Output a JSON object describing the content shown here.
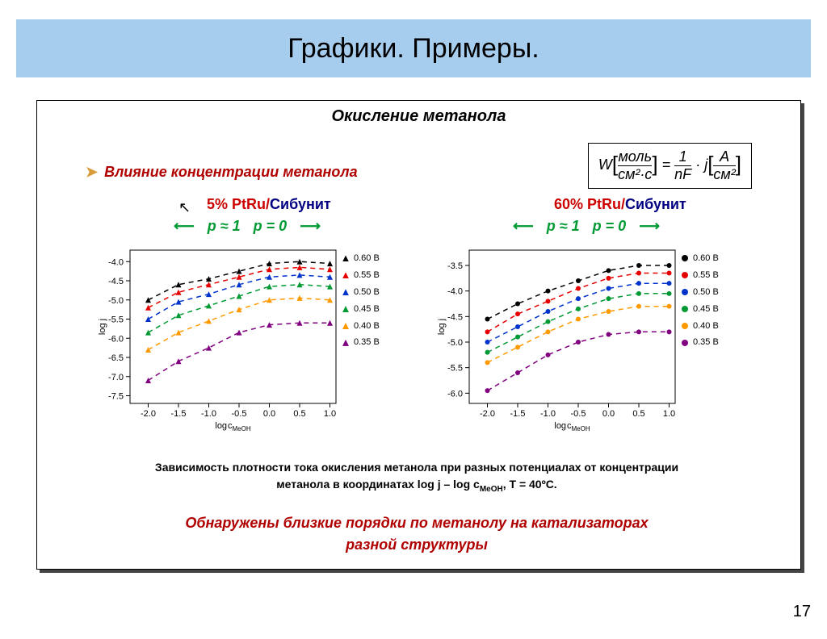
{
  "page_title": "Графики. Примеры.",
  "panel_title": "Окисление метанола",
  "bullet_text": "Влияние концентрации метанола",
  "formula_html": "W <span class='br'>[</span> <span>моль</span> / <span>см²·с</span> <span class='br'>]</span> = 1/nF · j <span class='br'>[</span> A / см² <span class='br'>]</span>",
  "cat_left_main": "5% PtRu/",
  "cat_left_suf": "Сибунит",
  "cat_right_main": "60% PtRu/",
  "cat_right_suf": "Сибунит",
  "arrow_left_1": "p ≈ 1",
  "arrow_left_2": "p = 0",
  "caption_line1": "Зависимость плотности тока окисления метанола при разных потенциалах от концентрации",
  "caption_line2": "метанола в координатах log j – log сMeOH, T = 40ºC.",
  "conclusion_line1": "Обнаружены близкие порядки по метанолу на катализаторах",
  "conclusion_line2": "разной структуры",
  "page_number": "17",
  "x_axis_label": "log сMeOH",
  "y_axis_label": "log j",
  "chart_left": {
    "type": "scatter-line",
    "marker": "triangle",
    "xlim": [
      -2.3,
      1.1
    ],
    "xticks": [
      -2.0,
      -1.5,
      -1.0,
      -0.5,
      0.0,
      0.5,
      1.0
    ],
    "ylim": [
      -7.7,
      -3.7
    ],
    "yticks": [
      -7.5,
      -7.0,
      -6.5,
      -6.0,
      -5.5,
      -5.0,
      -4.5,
      -4.0
    ],
    "series": [
      {
        "label": "0.60 В",
        "color": "#000000",
        "x": [
          -2,
          -1.5,
          -1,
          -0.5,
          0,
          0.5,
          1
        ],
        "y": [
          -5.0,
          -4.6,
          -4.45,
          -4.25,
          -4.05,
          -4.0,
          -4.05
        ]
      },
      {
        "label": "0.55 В",
        "color": "#e60000",
        "x": [
          -2,
          -1.5,
          -1,
          -0.5,
          0,
          0.5,
          1
        ],
        "y": [
          -5.2,
          -4.8,
          -4.6,
          -4.4,
          -4.2,
          -4.15,
          -4.2
        ]
      },
      {
        "label": "0.50 В",
        "color": "#0033cc",
        "x": [
          -2,
          -1.5,
          -1,
          -0.5,
          0,
          0.5,
          1
        ],
        "y": [
          -5.5,
          -5.05,
          -4.85,
          -4.6,
          -4.4,
          -4.35,
          -4.4
        ]
      },
      {
        "label": "0.45 В",
        "color": "#009933",
        "x": [
          -2,
          -1.5,
          -1,
          -0.5,
          0,
          0.5,
          1
        ],
        "y": [
          -5.85,
          -5.4,
          -5.15,
          -4.9,
          -4.65,
          -4.6,
          -4.65
        ]
      },
      {
        "label": "0.40 В",
        "color": "#ff9900",
        "x": [
          -2,
          -1.5,
          -1,
          -0.5,
          0,
          0.5,
          1
        ],
        "y": [
          -6.3,
          -5.85,
          -5.55,
          -5.25,
          -5.0,
          -4.95,
          -5.0
        ]
      },
      {
        "label": "0.35 В",
        "color": "#800080",
        "x": [
          -2,
          -1.5,
          -1,
          -0.5,
          0,
          0.5,
          1
        ],
        "y": [
          -7.1,
          -6.6,
          -6.25,
          -5.85,
          -5.65,
          -5.6,
          -5.6
        ]
      }
    ],
    "dash": "6,5",
    "marker_size": 7,
    "line_width": 1.5,
    "bg": "#ffffff",
    "axis_color": "#000000",
    "label_fontsize": 11
  },
  "chart_right": {
    "type": "scatter-line",
    "marker": "circle",
    "xlim": [
      -2.3,
      1.1
    ],
    "xticks": [
      -2.0,
      -1.5,
      -1.0,
      -0.5,
      0.0,
      0.5,
      1.0
    ],
    "ylim": [
      -6.2,
      -3.2
    ],
    "yticks": [
      -6.0,
      -5.5,
      -5.0,
      -4.5,
      -4.0,
      -3.5
    ],
    "series": [
      {
        "label": "0.60 В",
        "color": "#000000",
        "x": [
          -2,
          -1.5,
          -1,
          -0.5,
          0,
          0.5,
          1
        ],
        "y": [
          -4.55,
          -4.25,
          -4.0,
          -3.8,
          -3.6,
          -3.5,
          -3.5
        ]
      },
      {
        "label": "0.55 В",
        "color": "#e60000",
        "x": [
          -2,
          -1.5,
          -1,
          -0.5,
          0,
          0.5,
          1
        ],
        "y": [
          -4.8,
          -4.45,
          -4.2,
          -3.95,
          -3.75,
          -3.65,
          -3.65
        ]
      },
      {
        "label": "0.50 В",
        "color": "#0033cc",
        "x": [
          -2,
          -1.5,
          -1,
          -0.5,
          0,
          0.5,
          1
        ],
        "y": [
          -5.0,
          -4.7,
          -4.4,
          -4.15,
          -3.95,
          -3.85,
          -3.85
        ]
      },
      {
        "label": "0.45 В",
        "color": "#009933",
        "x": [
          -2,
          -1.5,
          -1,
          -0.5,
          0,
          0.5,
          1
        ],
        "y": [
          -5.2,
          -4.9,
          -4.6,
          -4.35,
          -4.15,
          -4.05,
          -4.05
        ]
      },
      {
        "label": "0.40 В",
        "color": "#ff9900",
        "x": [
          -2,
          -1.5,
          -1,
          -0.5,
          0,
          0.5,
          1
        ],
        "y": [
          -5.4,
          -5.1,
          -4.8,
          -4.55,
          -4.4,
          -4.3,
          -4.3
        ]
      },
      {
        "label": "0.35 В",
        "color": "#800080",
        "x": [
          -2,
          -1.5,
          -1,
          -0.5,
          0,
          0.5,
          1
        ],
        "y": [
          -5.95,
          -5.6,
          -5.25,
          -5.0,
          -4.85,
          -4.8,
          -4.8
        ]
      }
    ],
    "dash": "6,5",
    "marker_size": 6,
    "line_width": 1.5,
    "bg": "#ffffff",
    "axis_color": "#000000",
    "label_fontsize": 11
  }
}
